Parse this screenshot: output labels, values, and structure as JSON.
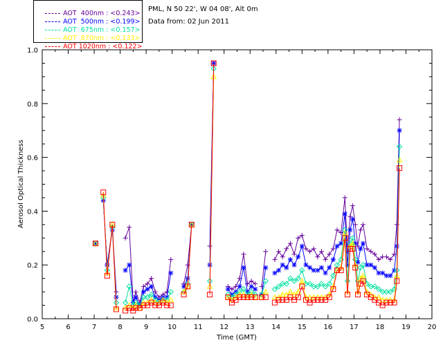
{
  "header": {
    "station_line": "PML, N 50 22', W 04 08', Alt 0m",
    "date_line": "Data from: 02 Jun 2011"
  },
  "legend": [
    {
      "label": "AOT  400nm : <0.243>",
      "color": "#660099"
    },
    {
      "label": "AOT  500nm : <0.199>",
      "color": "#0000ff"
    },
    {
      "label": "AOT  675nm : <0.157>",
      "color": "#00e0a0"
    },
    {
      "label": "AOT  870nm : <0.133>",
      "color": "#ffee00"
    },
    {
      "label": "AOT 1020nm : <0.122>",
      "color": "#ff0000"
    }
  ],
  "chart_data": {
    "type": "line",
    "xlabel": "Time (GMT)",
    "ylabel": "Aerosol Optical Thickness",
    "xlim": [
      5,
      20
    ],
    "ylim": [
      0,
      1.0
    ],
    "xticks": [
      "5",
      "6",
      "7",
      "8",
      "9",
      "10",
      "11",
      "12",
      "13",
      "14",
      "15",
      "16",
      "17",
      "18",
      "19",
      "20"
    ],
    "yticks": [
      "0.0",
      "0.2",
      "0.4",
      "0.6",
      "0.8",
      "1.0"
    ],
    "segments": [
      {
        "x": [
          7.05
        ],
        "s": [
          [
            0.28
          ],
          [
            0.28
          ],
          [
            0.28
          ],
          [
            0.28
          ],
          [
            0.28
          ]
        ]
      },
      {
        "x": [
          7.35,
          7.5,
          7.7,
          7.85
        ],
        "s": [
          [
            0.44,
            0.2,
            0.34,
            0.1
          ],
          [
            0.44,
            0.2,
            0.33,
            0.08
          ],
          [
            0.45,
            0.18,
            0.34,
            0.06
          ],
          [
            0.46,
            0.17,
            0.35,
            0.04
          ],
          [
            0.47,
            0.16,
            0.35,
            0.035
          ]
        ]
      },
      {
        "x": [
          8.2,
          8.35,
          8.5,
          8.6,
          8.75,
          8.9,
          9.05,
          9.2,
          9.35,
          9.5,
          9.65,
          9.8,
          9.95
        ],
        "s": [
          [
            0.3,
            0.34,
            0.06,
            0.1,
            0.06,
            0.12,
            0.13,
            0.15,
            0.1,
            0.08,
            0.09,
            0.1,
            0.22
          ],
          [
            0.18,
            0.2,
            0.06,
            0.08,
            0.05,
            0.1,
            0.11,
            0.12,
            0.08,
            0.07,
            0.08,
            0.08,
            0.17
          ],
          [
            0.06,
            0.12,
            0.05,
            0.06,
            0.05,
            0.08,
            0.08,
            0.09,
            0.07,
            0.06,
            0.07,
            0.07,
            0.1
          ],
          [
            0.04,
            0.05,
            0.04,
            0.05,
            0.04,
            0.06,
            0.06,
            0.07,
            0.06,
            0.06,
            0.07,
            0.06,
            0.07
          ],
          [
            0.03,
            0.04,
            0.03,
            0.04,
            0.04,
            0.05,
            0.05,
            0.06,
            0.05,
            0.05,
            0.06,
            0.05,
            0.05
          ]
        ]
      },
      {
        "x": [
          10.45,
          10.6,
          10.75
        ],
        "s": [
          [
            0.13,
            0.2,
            0.35
          ],
          [
            0.12,
            0.15,
            0.35
          ],
          [
            0.1,
            0.13,
            0.35
          ],
          [
            0.1,
            0.12,
            0.35
          ],
          [
            0.09,
            0.12,
            0.35
          ]
        ]
      },
      {
        "x": [
          11.45,
          11.6
        ],
        "s": [
          [
            0.27,
            0.95
          ],
          [
            0.2,
            0.95
          ],
          [
            0.14,
            0.93
          ],
          [
            0.12,
            0.9
          ],
          [
            0.09,
            0.95
          ]
        ]
      },
      {
        "x": [
          12.15,
          12.3,
          12.45,
          12.6,
          12.75,
          12.9,
          13.05,
          13.2
        ],
        "s": [
          [
            0.12,
            0.11,
            0.12,
            0.15,
            0.24,
            0.13,
            0.14,
            0.13
          ],
          [
            0.11,
            0.09,
            0.1,
            0.12,
            0.19,
            0.1,
            0.12,
            0.11
          ],
          [
            0.09,
            0.08,
            0.09,
            0.1,
            0.11,
            0.09,
            0.1,
            0.09
          ],
          [
            0.08,
            0.07,
            0.08,
            0.09,
            0.09,
            0.08,
            0.09,
            0.08
          ],
          [
            0.08,
            0.06,
            0.07,
            0.08,
            0.08,
            0.08,
            0.08,
            0.08
          ]
        ]
      },
      {
        "x": [
          13.45,
          13.6
        ],
        "s": [
          [
            0.12,
            0.25
          ],
          [
            0.09,
            0.19
          ],
          [
            0.09,
            0.14
          ],
          [
            0.08,
            0.1
          ],
          [
            0.08,
            0.08
          ]
        ]
      },
      {
        "x": [
          13.95,
          14.1,
          14.25,
          14.4,
          14.55,
          14.7,
          14.85,
          15.0,
          15.15,
          15.3,
          15.45,
          15.6,
          15.75,
          15.9,
          16.05,
          16.2,
          16.35,
          16.5,
          16.65,
          16.75,
          16.85,
          16.95,
          17.05,
          17.15,
          17.25,
          17.35,
          17.5,
          17.65,
          17.8,
          17.95,
          18.1,
          18.25,
          18.4,
          18.55,
          18.65,
          18.75
        ],
        "s": [
          [
            0.22,
            0.25,
            0.23,
            0.26,
            0.28,
            0.24,
            0.3,
            0.31,
            0.26,
            0.25,
            0.26,
            0.23,
            0.25,
            0.22,
            0.24,
            0.26,
            0.33,
            0.32,
            0.45,
            0.25,
            0.38,
            0.42,
            0.35,
            0.27,
            0.33,
            0.35,
            0.26,
            0.25,
            0.24,
            0.22,
            0.23,
            0.23,
            0.22,
            0.24,
            0.35,
            0.74
          ],
          [
            0.17,
            0.18,
            0.2,
            0.19,
            0.22,
            0.2,
            0.23,
            0.27,
            0.2,
            0.19,
            0.18,
            0.18,
            0.19,
            0.17,
            0.19,
            0.22,
            0.27,
            0.28,
            0.39,
            0.2,
            0.33,
            0.37,
            0.28,
            0.21,
            0.26,
            0.28,
            0.2,
            0.2,
            0.19,
            0.17,
            0.17,
            0.16,
            0.16,
            0.18,
            0.27,
            0.7
          ],
          [
            0.11,
            0.12,
            0.13,
            0.13,
            0.15,
            0.14,
            0.15,
            0.18,
            0.13,
            0.13,
            0.12,
            0.12,
            0.13,
            0.12,
            0.13,
            0.16,
            0.2,
            0.22,
            0.33,
            0.14,
            0.28,
            0.3,
            0.22,
            0.14,
            0.19,
            0.2,
            0.13,
            0.12,
            0.12,
            0.11,
            0.1,
            0.1,
            0.1,
            0.11,
            0.18,
            0.64
          ],
          [
            0.08,
            0.08,
            0.09,
            0.09,
            0.1,
            0.09,
            0.1,
            0.14,
            0.08,
            0.08,
            0.08,
            0.08,
            0.08,
            0.08,
            0.09,
            0.12,
            0.18,
            0.19,
            0.32,
            0.1,
            0.27,
            0.28,
            0.2,
            0.1,
            0.15,
            0.16,
            0.1,
            0.09,
            0.08,
            0.08,
            0.07,
            0.07,
            0.07,
            0.07,
            0.16,
            0.59
          ],
          [
            0.06,
            0.07,
            0.07,
            0.07,
            0.08,
            0.07,
            0.08,
            0.12,
            0.07,
            0.06,
            0.07,
            0.07,
            0.07,
            0.07,
            0.08,
            0.11,
            0.18,
            0.18,
            0.3,
            0.09,
            0.26,
            0.26,
            0.19,
            0.09,
            0.13,
            0.14,
            0.09,
            0.08,
            0.07,
            0.06,
            0.05,
            0.06,
            0.06,
            0.06,
            0.14,
            0.56
          ]
        ]
      }
    ]
  }
}
